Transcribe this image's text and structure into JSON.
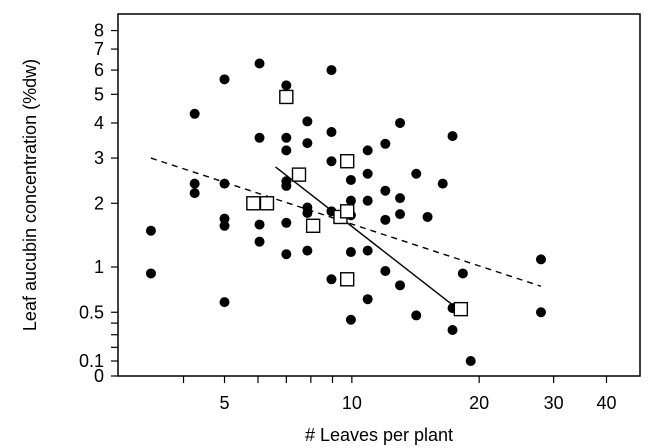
{
  "chart_data": {
    "type": "scatter",
    "title": "",
    "xlabel": "# Leaves per plant",
    "ylabel": "Leaf aucubin concentration (%dw)",
    "xscale": "log",
    "yscale": "log(1+y)",
    "xlim": [
      2.8,
      48
    ],
    "ylim": [
      0,
      9
    ],
    "grid": false,
    "x_ticks": [
      {
        "value": 5,
        "label": "5"
      },
      {
        "value": 10,
        "label": "10"
      },
      {
        "value": 20,
        "label": "20"
      },
      {
        "value": 30,
        "label": "30"
      },
      {
        "value": 40,
        "label": "40"
      }
    ],
    "x_minor_ticks": [
      4,
      6,
      7,
      8,
      9
    ],
    "y_ticks": [
      {
        "value": 0,
        "label": "0"
      },
      {
        "value": 0.1,
        "label": "0.1"
      },
      {
        "value": 0.5,
        "label": "0.5"
      },
      {
        "value": 1,
        "label": "1"
      },
      {
        "value": 2,
        "label": "2"
      },
      {
        "value": 3,
        "label": "3"
      },
      {
        "value": 4,
        "label": "4"
      },
      {
        "value": 5,
        "label": "5"
      },
      {
        "value": 6,
        "label": "6"
      },
      {
        "value": 7,
        "label": "7"
      },
      {
        "value": 8,
        "label": "8"
      }
    ],
    "y_minor_ticks": [
      0.2,
      0.3,
      0.4
    ],
    "series": [
      {
        "marker": "filled-circle",
        "color": "#000000",
        "points": [
          [
            3.35,
            1.52
          ],
          [
            3.35,
            0.92
          ],
          [
            4.25,
            4.3
          ],
          [
            4.25,
            2.4
          ],
          [
            4.25,
            2.2
          ],
          [
            5.0,
            5.6
          ],
          [
            5.0,
            2.4
          ],
          [
            5.0,
            1.72
          ],
          [
            5.0,
            1.6
          ],
          [
            5.0,
            0.6
          ],
          [
            6.05,
            6.3
          ],
          [
            6.05,
            3.55
          ],
          [
            6.05,
            1.62
          ],
          [
            6.05,
            1.35
          ],
          [
            7.0,
            5.35
          ],
          [
            7.0,
            3.55
          ],
          [
            7.0,
            3.2
          ],
          [
            7.0,
            2.45
          ],
          [
            7.0,
            2.35
          ],
          [
            7.0,
            1.65
          ],
          [
            7.0,
            1.17
          ],
          [
            7.85,
            4.05
          ],
          [
            7.85,
            3.4
          ],
          [
            7.85,
            1.92
          ],
          [
            7.85,
            1.82
          ],
          [
            7.85,
            1.22
          ],
          [
            8.95,
            6.0
          ],
          [
            8.95,
            3.72
          ],
          [
            8.95,
            2.92
          ],
          [
            8.95,
            1.85
          ],
          [
            8.95,
            0.85
          ],
          [
            9.95,
            2.48
          ],
          [
            9.95,
            2.05
          ],
          [
            9.95,
            1.78
          ],
          [
            9.95,
            1.2
          ],
          [
            9.95,
            0.43
          ],
          [
            10.9,
            3.2
          ],
          [
            10.9,
            2.62
          ],
          [
            10.9,
            2.05
          ],
          [
            10.9,
            1.22
          ],
          [
            10.9,
            0.63
          ],
          [
            12.0,
            3.38
          ],
          [
            12.0,
            2.25
          ],
          [
            12.0,
            1.7
          ],
          [
            12.0,
            0.95
          ],
          [
            13.0,
            4.0
          ],
          [
            13.0,
            2.1
          ],
          [
            13.0,
            1.8
          ],
          [
            13.0,
            0.78
          ],
          [
            14.2,
            2.62
          ],
          [
            14.2,
            0.47
          ],
          [
            15.1,
            1.75
          ],
          [
            16.4,
            2.4
          ],
          [
            17.3,
            3.6
          ],
          [
            17.3,
            0.54
          ],
          [
            17.3,
            0.34
          ],
          [
            18.3,
            0.92
          ],
          [
            19.1,
            0.1
          ],
          [
            28.0,
            1.1
          ],
          [
            28.0,
            0.5
          ]
        ]
      },
      {
        "marker": "open-square",
        "color": "#000000",
        "points": [
          [
            5.85,
            2.0
          ],
          [
            6.3,
            2.0
          ],
          [
            7.0,
            4.9
          ],
          [
            7.5,
            2.6
          ],
          [
            8.1,
            1.6
          ],
          [
            9.4,
            1.75
          ],
          [
            9.75,
            2.92
          ],
          [
            9.75,
            1.85
          ],
          [
            9.75,
            0.85
          ],
          [
            18.1,
            0.53
          ]
        ]
      }
    ],
    "fit_lines": [
      {
        "style": "dashed",
        "color": "#000000",
        "from": [
          3.35,
          3.0
        ],
        "to": [
          28.0,
          0.77
        ]
      },
      {
        "style": "solid",
        "color": "#000000",
        "from": [
          6.6,
          2.78
        ],
        "to": [
          17.2,
          0.58
        ]
      }
    ]
  }
}
